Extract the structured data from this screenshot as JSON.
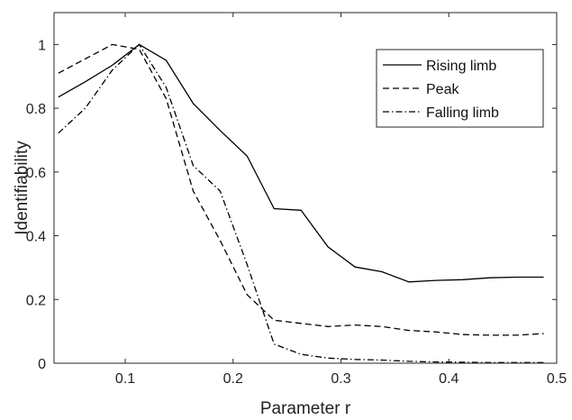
{
  "chart_data": {
    "type": "line",
    "xlabel": "Parameter r",
    "ylabel": "Identifiability",
    "xlim": [
      0.034,
      0.5
    ],
    "ylim": [
      0,
      1.1
    ],
    "xticks": [
      "0.1",
      "0.2",
      "0.3",
      "0.4",
      "0.5"
    ],
    "yticks": [
      "0",
      "0.2",
      "0.4",
      "0.6",
      "0.8",
      "1"
    ],
    "grid": false,
    "legend_position": "top-right",
    "series": [
      {
        "name": "Rising limb",
        "style": "solid",
        "x": [
          0.038,
          0.063,
          0.088,
          0.113,
          0.138,
          0.163,
          0.188,
          0.213,
          0.238,
          0.263,
          0.288,
          0.313,
          0.338,
          0.363,
          0.388,
          0.413,
          0.438,
          0.463,
          0.488
        ],
        "y": [
          0.835,
          0.883,
          0.935,
          1.0,
          0.95,
          0.815,
          0.73,
          0.65,
          0.485,
          0.48,
          0.365,
          0.302,
          0.287,
          0.255,
          0.26,
          0.262,
          0.268,
          0.27,
          0.27
        ]
      },
      {
        "name": "Peak",
        "style": "dashed",
        "x": [
          0.038,
          0.063,
          0.088,
          0.113,
          0.138,
          0.163,
          0.188,
          0.213,
          0.238,
          0.263,
          0.288,
          0.313,
          0.338,
          0.363,
          0.388,
          0.413,
          0.438,
          0.463,
          0.488
        ],
        "y": [
          0.91,
          0.955,
          1.0,
          0.985,
          0.83,
          0.54,
          0.385,
          0.215,
          0.135,
          0.125,
          0.115,
          0.12,
          0.115,
          0.103,
          0.098,
          0.09,
          0.088,
          0.088,
          0.093
        ]
      },
      {
        "name": "Falling limb",
        "style": "dashdot",
        "x": [
          0.038,
          0.063,
          0.088,
          0.113,
          0.138,
          0.163,
          0.188,
          0.213,
          0.238,
          0.263,
          0.288,
          0.313,
          0.338,
          0.363,
          0.388,
          0.413,
          0.438,
          0.463,
          0.488
        ],
        "y": [
          0.722,
          0.8,
          0.92,
          1.0,
          0.865,
          0.62,
          0.54,
          0.31,
          0.06,
          0.028,
          0.016,
          0.012,
          0.01,
          0.006,
          0.004,
          0.003,
          0.002,
          0.002,
          0.002
        ]
      }
    ]
  }
}
